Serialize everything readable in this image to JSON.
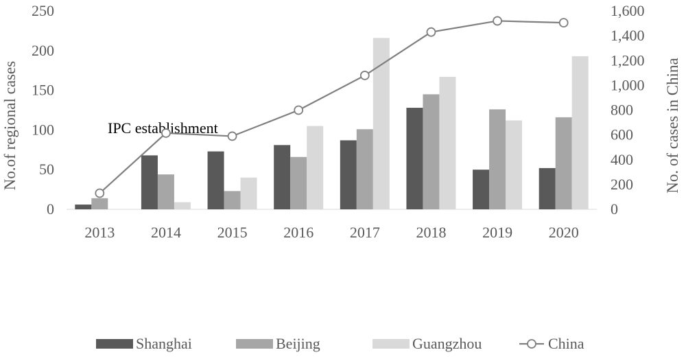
{
  "chart_data": {
    "type": "bar",
    "categories": [
      "2013",
      "2014",
      "2015",
      "2016",
      "2017",
      "2018",
      "2019",
      "2020"
    ],
    "series": [
      {
        "name": "Shanghai",
        "axis": "left",
        "color": "#595959",
        "values": [
          6,
          68,
          73,
          81,
          87,
          128,
          50,
          52
        ]
      },
      {
        "name": "Beijing",
        "axis": "left",
        "color": "#a6a6a6",
        "values": [
          14,
          44,
          23,
          66,
          101,
          145,
          126,
          116
        ]
      },
      {
        "name": "Guangzhou",
        "axis": "left",
        "color": "#d9d9d9",
        "values": [
          0,
          9,
          40,
          105,
          216,
          167,
          112,
          193
        ]
      },
      {
        "name": "China",
        "axis": "right",
        "type": "line",
        "color": "#7f7f7f",
        "values": [
          130,
          615,
          590,
          800,
          1080,
          1430,
          1520,
          1505
        ]
      }
    ],
    "ylabel": "No.of regional cases",
    "y2label": "No. of cases in China",
    "ylim": [
      0,
      250
    ],
    "y2lim": [
      0,
      1600
    ],
    "yticks": [
      "0",
      "50",
      "100",
      "150",
      "200",
      "250"
    ],
    "y2ticks": [
      "0",
      "200",
      "400",
      "600",
      "800",
      "1,000",
      "1,200",
      "1,400",
      "1,600"
    ],
    "annotation": "IPC establishment",
    "legend_position": "bottom",
    "grid": false
  }
}
